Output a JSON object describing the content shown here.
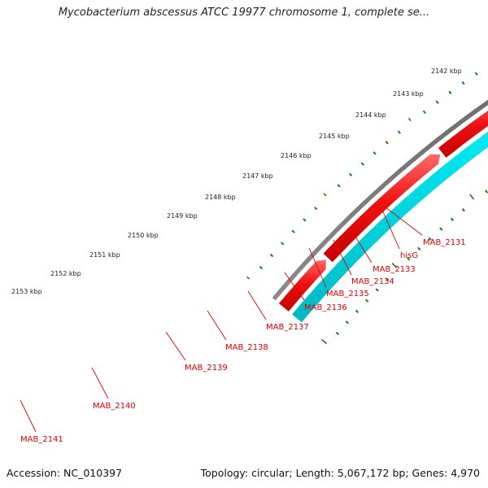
{
  "title": "Mycobacterium abscessus ATCC 19977 chromosome 1, complete se...",
  "footer": {
    "accession": "Accession: NC_010397",
    "summary": "Topology: circular; Length: 5,067,172 bp; Genes: 4,970"
  },
  "colors": {
    "backbone": "#7a7a7a",
    "cds": "#ee1111",
    "forward_track": "#00e5ee",
    "reverse_track": "#4682b4",
    "rna": "#3cbf3c",
    "pseudo": "#c8c8c8",
    "ticks": "#1e7a1e",
    "label": "#e00000"
  },
  "scale_labels": [
    "2142 kbp",
    "2143 kbp",
    "2144 kbp",
    "2145 kbp",
    "2146 kbp",
    "2147 kbp",
    "2148 kbp",
    "2149 kbp",
    "2150 kbp",
    "2151 kbp",
    "2152 kbp",
    "2153 kbp"
  ],
  "gene_labels": [
    "MAB_2131",
    "hisG",
    "MAB_2133",
    "MAB_2134",
    "MAB_2135",
    "MAB_2136",
    "MAB_2137",
    "MAB_2138",
    "MAB_2139",
    "MAB_2140",
    "MAB_2141"
  ]
}
